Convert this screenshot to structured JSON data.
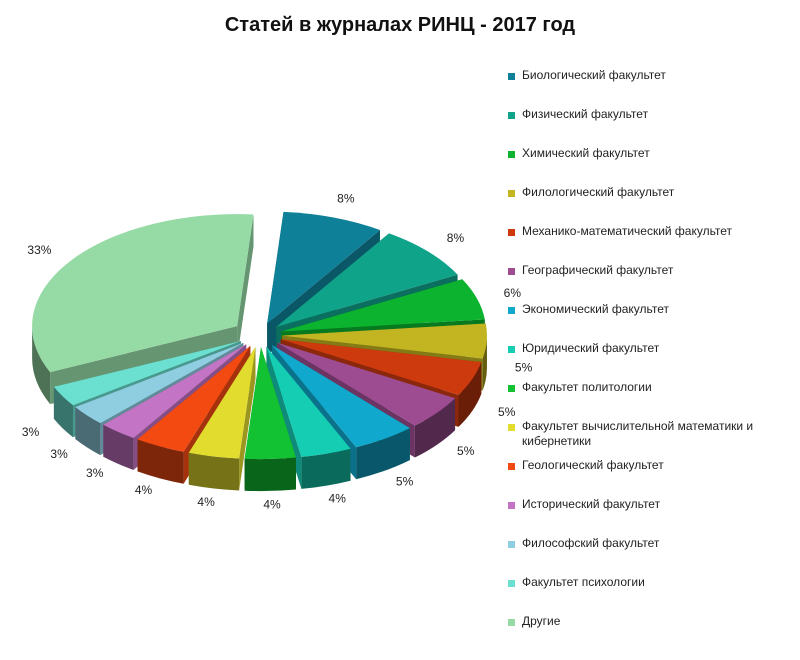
{
  "chart_data": {
    "type": "pie",
    "style": "3d-exploded",
    "title": "Статей в журналах РИНЦ - 2017 год",
    "legend_position": "right",
    "slices": [
      {
        "label": "Биологический факультет",
        "value": 8,
        "value_label": "8%",
        "color": "#0E8098"
      },
      {
        "label": "Физический факультет",
        "value": 8,
        "value_label": "8%",
        "color": "#0FA38A"
      },
      {
        "label": "Химический факультет",
        "value": 6,
        "value_label": "6%",
        "color": "#0BB32E"
      },
      {
        "label": "Филологический факультет",
        "value": 5,
        "value_label": "5%",
        "color": "#C2B521"
      },
      {
        "label": "Механико-математический факультет",
        "value": 5,
        "value_label": "5%",
        "color": "#CC3A0E"
      },
      {
        "label": "Географический факультет",
        "value": 5,
        "value_label": "5%",
        "color": "#9E4C92"
      },
      {
        "label": "Экономический факультет",
        "value": 5,
        "value_label": "5%",
        "color": "#10A8CC"
      },
      {
        "label": "Юридический факультет",
        "value": 4,
        "value_label": "4%",
        "color": "#14CDB3"
      },
      {
        "label": "Факультет политологии",
        "value": 4,
        "value_label": "4%",
        "color": "#12C232"
      },
      {
        "label": "Факультет вычислительной математики и кибернетики",
        "value": 4,
        "value_label": "4%",
        "color": "#E2DC2F"
      },
      {
        "label": "Геологический факультет",
        "value": 4,
        "value_label": "4%",
        "color": "#F24A11"
      },
      {
        "label": "Исторический факультет",
        "value": 3,
        "value_label": "3%",
        "color": "#C474C4"
      },
      {
        "label": "Философский факультет",
        "value": 3,
        "value_label": "3%",
        "color": "#8FCDE0"
      },
      {
        "label": "Факультет психологии",
        "value": 3,
        "value_label": "3%",
        "color": "#6CE0D0"
      },
      {
        "label": "Другие",
        "value": 33,
        "value_label": "33%",
        "color": "#96DBA6"
      }
    ]
  }
}
